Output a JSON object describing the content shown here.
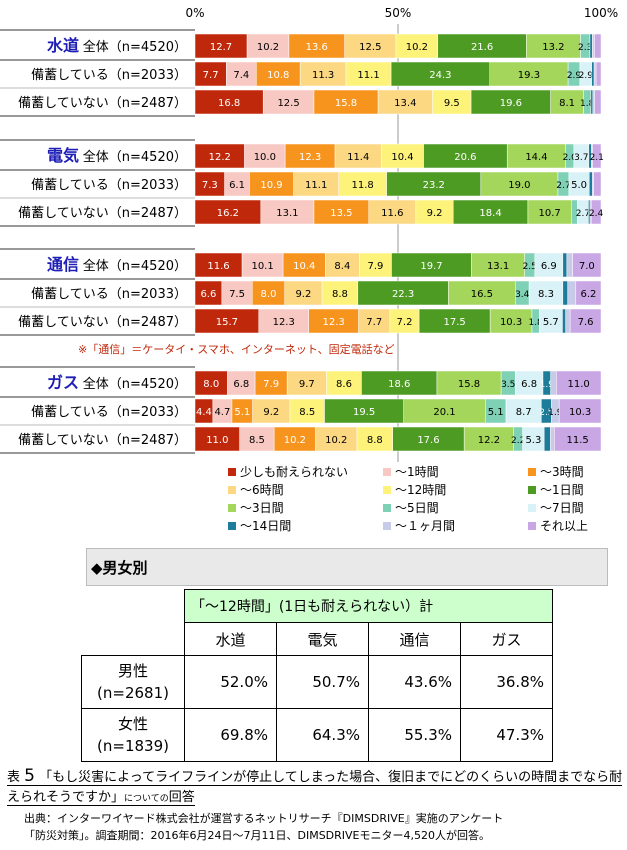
{
  "chart_data": {
    "type": "bar",
    "orientation": "horizontal",
    "stacked": "percent",
    "axis_ticks": [
      "0%",
      "50%",
      "100%"
    ],
    "legend": [
      "少しも耐えられない",
      "～1時間",
      "～3時間",
      "～6時間",
      "～12時間",
      "～1日間",
      "～3日間",
      "～5日間",
      "～7日間",
      "～14日間",
      "～１ヶ月間",
      "それ以上"
    ],
    "colors": [
      "#c0280b",
      "#f8c9c3",
      "#f7941d",
      "#fcd883",
      "#fdf37a",
      "#4e9b23",
      "#a3d65a",
      "#7fd1b5",
      "#d9f2f7",
      "#1d7c99",
      "#c7cbe8",
      "#c9a6e4"
    ],
    "groups": [
      {
        "name": "水道",
        "rows": [
          {
            "label": "全体（n=4520）",
            "values": [
              12.7,
              10.2,
              13.6,
              12.5,
              10.2,
              21.6,
              13.2,
              2.3,
              0.0,
              0.6,
              0.5,
              1.6
            ],
            "labels": [
              "12.7",
              "10.2",
              "13.6",
              "12.5",
              "10.2",
              "21.6",
              "13.2",
              "2.3",
              "",
              "",
              "",
              ""
            ]
          },
          {
            "label": "備蓄している（n=2033）",
            "values": [
              7.7,
              7.4,
              10.8,
              11.3,
              11.1,
              24.3,
              19.3,
              2.9,
              2.9,
              0.6,
              0.5,
              1.2
            ],
            "labels": [
              "7.7",
              "7.4",
              "10.8",
              "11.3",
              "11.1",
              "24.3",
              "19.3",
              "2.9",
              "2.9",
              "",
              "",
              ""
            ]
          },
          {
            "label": "備蓄していない（n=2487）",
            "values": [
              16.8,
              12.5,
              15.8,
              13.4,
              9.5,
              19.6,
              8.1,
              1.8,
              0.0,
              0.5,
              0.4,
              1.6
            ],
            "labels": [
              "16.8",
              "12.5",
              "15.8",
              "13.4",
              "9.5",
              "19.6",
              "8.1",
              "1.8",
              "",
              "",
              "",
              ""
            ]
          }
        ]
      },
      {
        "name": "電気",
        "rows": [
          {
            "label": "全体（n=4520）",
            "values": [
              12.2,
              10.0,
              12.3,
              11.4,
              10.4,
              20.6,
              14.4,
              2.0,
              3.7,
              0.6,
              0.3,
              2.1
            ],
            "labels": [
              "12.2",
              "10.0",
              "12.3",
              "11.4",
              "10.4",
              "20.6",
              "14.4",
              "2.0",
              "3.7",
              "",
              "",
              "2.1"
            ]
          },
          {
            "label": "備蓄している（n=2033）",
            "values": [
              7.3,
              6.1,
              10.9,
              11.1,
              11.8,
              23.2,
              19.0,
              2.7,
              5.0,
              0.8,
              0.3,
              1.8
            ],
            "labels": [
              "7.3",
              "6.1",
              "10.9",
              "11.1",
              "11.8",
              "23.2",
              "19.0",
              "2.7",
              "5.0",
              "",
              "",
              ""
            ]
          },
          {
            "label": "備蓄していない（n=2487）",
            "values": [
              16.2,
              13.1,
              13.5,
              11.6,
              9.2,
              18.4,
              10.7,
              1.5,
              2.7,
              0.4,
              0.3,
              2.4
            ],
            "labels": [
              "16.2",
              "13.1",
              "13.5",
              "11.6",
              "9.2",
              "18.4",
              "10.7",
              "",
              "2.7",
              "",
              "",
              "2.4"
            ]
          }
        ]
      },
      {
        "name": "通信",
        "rows": [
          {
            "label": "全体（n=4520）",
            "values": [
              11.6,
              10.1,
              10.4,
              8.4,
              7.9,
              19.7,
              13.1,
              2.5,
              6.9,
              1.0,
              1.4,
              7.0
            ],
            "labels": [
              "11.6",
              "10.1",
              "10.4",
              "8.4",
              "7.9",
              "19.7",
              "13.1",
              "2.5",
              "6.9",
              "",
              "",
              "7.0"
            ]
          },
          {
            "label": "備蓄している（n=2033）",
            "values": [
              6.6,
              7.5,
              8.0,
              9.2,
              8.8,
              22.3,
              16.5,
              3.4,
              8.3,
              1.2,
              2.0,
              6.2
            ],
            "labels": [
              "6.6",
              "7.5",
              "8.0",
              "9.2",
              "8.8",
              "22.3",
              "16.5",
              "3.4",
              "8.3",
              "",
              "",
              "6.2"
            ]
          },
          {
            "label": "備蓄していない（n=2487）",
            "values": [
              15.7,
              12.3,
              12.3,
              7.7,
              7.2,
              17.5,
              10.3,
              1.8,
              5.7,
              0.8,
              1.1,
              7.6
            ],
            "labels": [
              "15.7",
              "12.3",
              "12.3",
              "7.7",
              "7.2",
              "17.5",
              "10.3",
              "1.8",
              "5.7",
              "",
              "",
              "7.6"
            ]
          }
        ],
        "note": "※「通信」＝ケータイ・スマホ、インターネット、固定電話など"
      },
      {
        "name": "ガス",
        "rows": [
          {
            "label": "全体（n=4520）",
            "values": [
              8.0,
              6.8,
              7.9,
              9.7,
              8.6,
              18.6,
              15.8,
              3.5,
              6.8,
              1.9,
              1.4,
              11.0
            ],
            "labels": [
              "8.0",
              "6.8",
              "7.9",
              "9.7",
              "8.6",
              "18.6",
              "15.8",
              "3.5",
              "6.8",
              "1.9",
              "",
              "11.0"
            ]
          },
          {
            "label": "備蓄している（n=2033）",
            "values": [
              4.4,
              4.7,
              5.1,
              9.2,
              8.5,
              19.5,
              20.1,
              5.1,
              8.7,
              2.5,
              1.9,
              10.3
            ],
            "labels": [
              "4.4",
              "4.7",
              "5.1",
              "9.2",
              "8.5",
              "19.5",
              "20.1",
              "5.1",
              "8.7",
              "2.5",
              "1.9",
              "10.3"
            ]
          },
          {
            "label": "備蓄していない（n=2487）",
            "values": [
              11.0,
              8.5,
              10.2,
              10.2,
              8.8,
              17.6,
              12.2,
              2.2,
              5.3,
              1.5,
              1.0,
              11.5
            ],
            "labels": [
              "11.0",
              "8.5",
              "10.2",
              "10.2",
              "8.8",
              "17.6",
              "12.2",
              "2.2",
              "5.3",
              "",
              "",
              "11.5"
            ]
          }
        ]
      }
    ]
  },
  "gender_section": {
    "title": "◆男女別",
    "table_header": "「～12時間」(1日も耐えられない）計",
    "columns": [
      "水道",
      "電気",
      "通信",
      "ガス"
    ],
    "rows": [
      {
        "line1": "男性",
        "line2": "(n=2681)",
        "values": [
          "52.0%",
          "50.7%",
          "43.6%",
          "36.8%"
        ]
      },
      {
        "line1": "女性",
        "line2": "(n=1839)",
        "values": [
          "69.8%",
          "64.3%",
          "55.3%",
          "47.3%"
        ]
      }
    ]
  },
  "caption": {
    "prefix": "表",
    "number": "5",
    "question": "「もし災害によってライフラインが停止してしまった場合、復旧までにどのくらいの時間までなら耐えられそうですか」",
    "suffix_small": "についての",
    "suffix": "回答"
  },
  "source": {
    "line1": "出典：インターワイヤード株式会社が運営するネットリサーチ『DIMSDRIVE』実施のアンケート",
    "line2": "「防災対策」。調査期間：2016年6月24日～7月11日、DIMSDRIVEモニター4,520人が回答。"
  }
}
